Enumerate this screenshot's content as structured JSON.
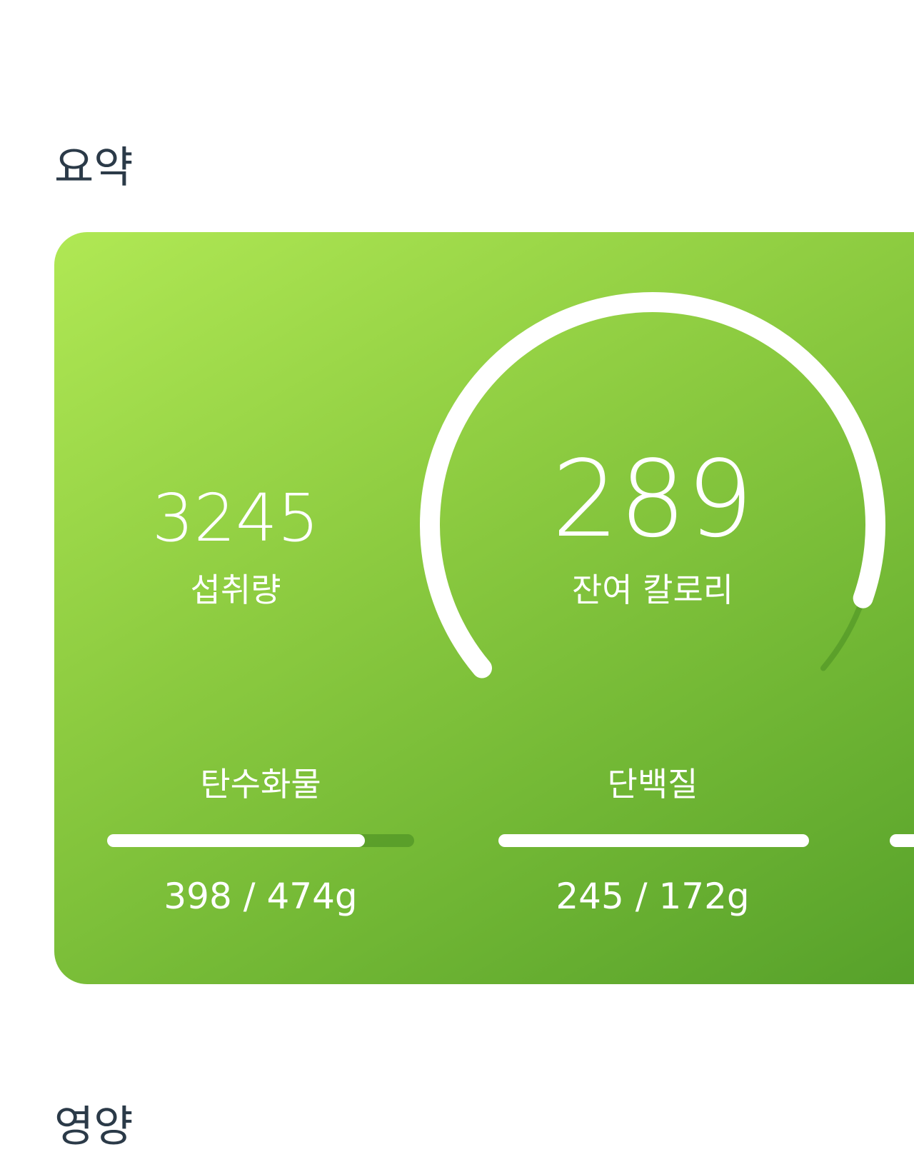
{
  "sections": {
    "summary_title": "요약",
    "nutrition_title": "영양"
  },
  "summary": {
    "intake": {
      "value": "3245",
      "label": "섭취량"
    },
    "remaining": {
      "value": "289",
      "label": "잔여 칼로리",
      "gauge_fraction": 0.92
    },
    "macros": [
      {
        "label": "탄수화물",
        "value_text": "398 / 474g",
        "current": 398,
        "goal": 474
      },
      {
        "label": "단백질",
        "value_text": "245 / 172g",
        "current": 245,
        "goal": 172
      },
      {
        "fraction": 1
      }
    ]
  },
  "colors": {
    "gradient_start": "#b0e854",
    "gradient_end": "#55a02a",
    "title_text": "#2b3a48"
  }
}
